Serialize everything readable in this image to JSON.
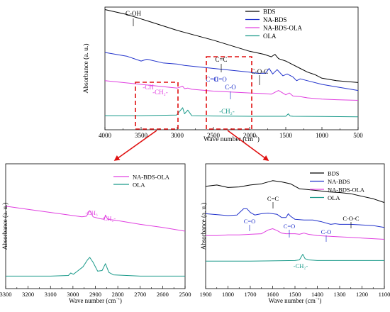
{
  "chart_data": [
    {
      "type": "line",
      "panel": "top",
      "xlabel": "Wave number (cm⁻¹)",
      "ylabel": "Absorbance (a. u.)",
      "xlim": [
        4000,
        500
      ],
      "xticks": [
        4000,
        3500,
        3000,
        2500,
        2000,
        1500,
        1000,
        500
      ],
      "grid": false,
      "legend": "top-right",
      "series": [
        {
          "name": "BDS",
          "color": "#000000",
          "x": [
            4000,
            3700,
            3480,
            3400,
            3000,
            2500,
            2000,
            1800,
            1700,
            1650,
            1600,
            1500,
            1400,
            1300,
            1200,
            1100,
            1000,
            800,
            600,
            500
          ],
          "y": [
            0.98,
            0.94,
            0.9,
            0.885,
            0.81,
            0.73,
            0.64,
            0.615,
            0.595,
            0.615,
            0.58,
            0.56,
            0.53,
            0.5,
            0.47,
            0.45,
            0.42,
            0.4,
            0.39,
            0.385
          ]
        },
        {
          "name": "NA-BDS",
          "color": "#2233cc",
          "x": [
            4000,
            3700,
            3500,
            3420,
            3200,
            3000,
            2900,
            2500,
            2000,
            1900,
            1780,
            1730,
            1680,
            1620,
            1540,
            1480,
            1400,
            1350,
            1300,
            1200,
            1000,
            800,
            600,
            500
          ],
          "y": [
            0.63,
            0.6,
            0.56,
            0.575,
            0.545,
            0.535,
            0.525,
            0.5,
            0.47,
            0.46,
            0.46,
            0.5,
            0.455,
            0.49,
            0.44,
            0.455,
            0.43,
            0.4,
            0.415,
            0.4,
            0.37,
            0.35,
            0.33,
            0.32
          ]
        },
        {
          "name": "NA-BDS-OLA",
          "color": "#e040e0",
          "x": [
            4000,
            3500,
            3000,
            2925,
            2900,
            2855,
            2800,
            2500,
            2000,
            1800,
            1700,
            1600,
            1500,
            1450,
            1400,
            1300,
            1200,
            1000,
            800,
            500
          ],
          "y": [
            0.4,
            0.37,
            0.34,
            0.355,
            0.335,
            0.34,
            0.33,
            0.315,
            0.3,
            0.295,
            0.29,
            0.32,
            0.285,
            0.3,
            0.275,
            0.27,
            0.26,
            0.25,
            0.245,
            0.24
          ]
        },
        {
          "name": "OLA",
          "color": "#1a9a8a",
          "x": [
            4000,
            3500,
            3010,
            2925,
            2900,
            2855,
            2800,
            2500,
            2000,
            1500,
            1465,
            1440,
            1400,
            1000,
            500
          ],
          "y": [
            0.115,
            0.115,
            0.12,
            0.18,
            0.13,
            0.16,
            0.115,
            0.112,
            0.11,
            0.11,
            0.13,
            0.112,
            0.11,
            0.108,
            0.105
          ]
        }
      ],
      "annotations": [
        "C-OH",
        "C=C",
        "C-O-C",
        "C=O",
        "C=O",
        "C=O",
        "-CH₃",
        "-CH₂-",
        "-CH₂-"
      ]
    },
    {
      "type": "line",
      "panel": "bottom-left",
      "xlabel": "Wave number (cm⁻¹)",
      "ylabel": "Absorbance (a. u.)",
      "xlim": [
        3300,
        2500
      ],
      "xticks": [
        3300,
        3200,
        3100,
        3000,
        2900,
        2800,
        2700,
        2600,
        2500
      ],
      "grid": false,
      "legend": "top-right",
      "series": [
        {
          "name": "NA-BDS-OLA",
          "color": "#e040e0",
          "x": [
            3300,
            3200,
            3100,
            3000,
            2960,
            2940,
            2925,
            2910,
            2880,
            2860,
            2855,
            2845,
            2800,
            2700,
            2600,
            2500
          ],
          "y": [
            0.66,
            0.635,
            0.61,
            0.585,
            0.575,
            0.58,
            0.625,
            0.575,
            0.56,
            0.555,
            0.59,
            0.555,
            0.545,
            0.515,
            0.49,
            0.46
          ]
        },
        {
          "name": "OLA",
          "color": "#1a9a8a",
          "x": [
            3300,
            3100,
            3020,
            3010,
            2998,
            2980,
            2955,
            2935,
            2925,
            2910,
            2890,
            2870,
            2855,
            2840,
            2820,
            2700,
            2600,
            2500
          ],
          "y": [
            0.1,
            0.1,
            0.105,
            0.125,
            0.115,
            0.14,
            0.175,
            0.23,
            0.25,
            0.21,
            0.14,
            0.145,
            0.2,
            0.13,
            0.11,
            0.1,
            0.1,
            0.1
          ]
        }
      ],
      "annotations": [
        "-CH₃",
        "-CH₂-"
      ]
    },
    {
      "type": "line",
      "panel": "bottom-right",
      "xlabel": "Wave number (cm⁻¹)",
      "ylabel": "Absorbance (a. u.)",
      "xlim": [
        1900,
        1100
      ],
      "xticks": [
        1900,
        1800,
        1700,
        1600,
        1500,
        1400,
        1300,
        1200,
        1100
      ],
      "grid": false,
      "legend": "top-right",
      "series": [
        {
          "name": "BDS",
          "color": "#000000",
          "x": [
            1900,
            1850,
            1800,
            1750,
            1700,
            1650,
            1600,
            1560,
            1520,
            1480,
            1450,
            1400,
            1350,
            1300,
            1250,
            1200,
            1150,
            1100
          ],
          "y": [
            0.82,
            0.83,
            0.81,
            0.815,
            0.83,
            0.84,
            0.865,
            0.855,
            0.84,
            0.8,
            0.795,
            0.785,
            0.775,
            0.77,
            0.76,
            0.74,
            0.72,
            0.69
          ]
        },
        {
          "name": "NA-BDS",
          "color": "#2233cc",
          "x": [
            1900,
            1800,
            1760,
            1730,
            1715,
            1700,
            1680,
            1650,
            1620,
            1600,
            1580,
            1560,
            1540,
            1530,
            1520,
            1500,
            1460,
            1420,
            1380,
            1350,
            1340,
            1320,
            1300,
            1250,
            1200,
            1150,
            1100
          ],
          "y": [
            0.6,
            0.585,
            0.59,
            0.64,
            0.64,
            0.61,
            0.59,
            0.6,
            0.605,
            0.6,
            0.595,
            0.57,
            0.57,
            0.6,
            0.58,
            0.555,
            0.55,
            0.55,
            0.535,
            0.52,
            0.515,
            0.52,
            0.515,
            0.515,
            0.51,
            0.505,
            0.49
          ]
        },
        {
          "name": "NA-BDS-OLA",
          "color": "#e040e0",
          "x": [
            1900,
            1850,
            1800,
            1750,
            1700,
            1650,
            1620,
            1600,
            1580,
            1560,
            1540,
            1520,
            1500,
            1480,
            1460,
            1440,
            1400,
            1350,
            1300,
            1250,
            1200,
            1150,
            1100
          ],
          "y": [
            0.425,
            0.425,
            0.43,
            0.43,
            0.435,
            0.44,
            0.47,
            0.48,
            0.465,
            0.445,
            0.44,
            0.44,
            0.44,
            0.435,
            0.445,
            0.435,
            0.425,
            0.42,
            0.415,
            0.41,
            0.405,
            0.4,
            0.395
          ]
        },
        {
          "name": "OLA",
          "color": "#1a9a8a",
          "x": [
            1900,
            1700,
            1500,
            1480,
            1470,
            1465,
            1455,
            1440,
            1400,
            1300,
            1200,
            1100
          ],
          "y": [
            0.22,
            0.22,
            0.225,
            0.23,
            0.26,
            0.275,
            0.24,
            0.23,
            0.225,
            0.225,
            0.225,
            0.225
          ]
        }
      ],
      "annotations": [
        "C=C",
        "C-O-C",
        "C=O",
        "C=O",
        "C-O",
        "-CH₂-"
      ]
    }
  ]
}
